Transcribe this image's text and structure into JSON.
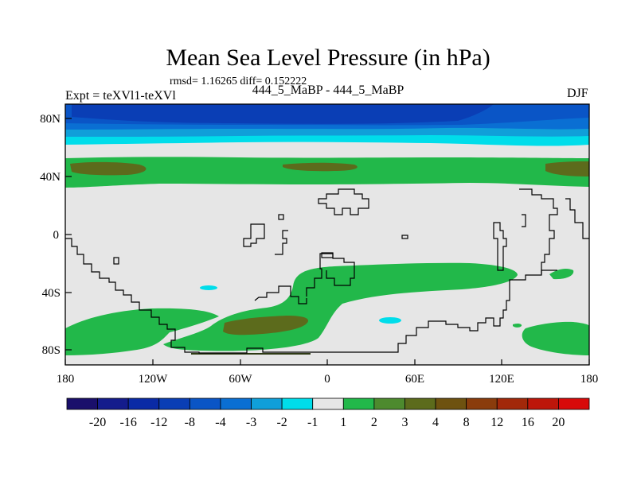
{
  "title": "Mean Sea Level Pressure (in hPa)",
  "stats": "rmsd= 1.16265 diff= 0.152222",
  "left_label": "Expt = teXVl1-teXVl",
  "center_label": "444_5_MaBP - 444_5_MaBP",
  "right_label": "DJF",
  "y_ticks": [
    "80N",
    "40N",
    "0",
    "40S",
    "80S"
  ],
  "x_ticks": [
    "180",
    "120W",
    "60W",
    "0",
    "60E",
    "120E",
    "180"
  ],
  "colorbar": {
    "labels": [
      "-20",
      "-16",
      "-12",
      "-8",
      "-4",
      "-3",
      "-2",
      "-1",
      "1",
      "2",
      "3",
      "4",
      "8",
      "12",
      "16",
      "20"
    ],
    "colors": [
      "#1a0f6b",
      "#141c8c",
      "#0a2aa6",
      "#0a3eb5",
      "#0a55c6",
      "#0a6fd3",
      "#109fd9",
      "#00ddea",
      "#e6e6e6",
      "#22b84a",
      "#4d8a2e",
      "#5c6b1c",
      "#6e5210",
      "#8a3c0c",
      "#a2280a",
      "#bd160a",
      "#d80a0a"
    ]
  },
  "colors": {
    "neutral": "#e6e6e6",
    "cyan": "#00ddea",
    "light_blue": "#109fd9",
    "mid_blue": "#0a6fd3",
    "deep_blue": "#0a55c6",
    "darkest_blue": "#0a3eb5",
    "green": "#22b84a",
    "olive": "#5c6b1c",
    "coast": "#000000"
  }
}
